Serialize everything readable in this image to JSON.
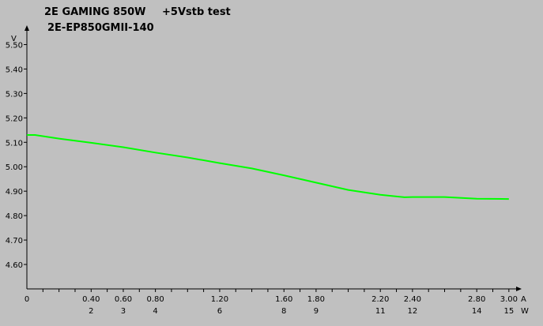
{
  "chart_data": {
    "type": "line",
    "title_lines": [
      "2E GAMING 850W",
      "2E-EP850GMII-140"
    ],
    "subtitle": "+5Vstb test",
    "ylabel": "V",
    "xlabel": "A",
    "x2label": "W",
    "ylim": [
      4.5,
      5.55
    ],
    "xlim": [
      0,
      3.05
    ],
    "y_ticks": [
      "4.60",
      "4.70",
      "4.80",
      "4.90",
      "5.00",
      "5.10",
      "5.20",
      "5.30",
      "5.40",
      "5.50"
    ],
    "y_tick_values": [
      4.6,
      4.7,
      4.8,
      4.9,
      5.0,
      5.1,
      5.2,
      5.3,
      5.4,
      5.5
    ],
    "x_ticks": [
      "0",
      "0.40",
      "0.60",
      "0.80",
      "1.20",
      "1.60",
      "1.80",
      "2.20",
      "2.40",
      "2.80",
      "3.00"
    ],
    "x_tick_values": [
      0,
      0.4,
      0.6,
      0.8,
      1.2,
      1.6,
      1.8,
      2.2,
      2.4,
      2.8,
      3.0
    ],
    "x2_ticks": [
      "2",
      "3",
      "4",
      "6",
      "8",
      "9",
      "11",
      "12",
      "14",
      "15"
    ],
    "x2_tick_values": [
      0.4,
      0.6,
      0.8,
      1.2,
      1.6,
      1.8,
      2.2,
      2.4,
      2.8,
      3.0
    ],
    "grid": false,
    "series": [
      {
        "color": "#00ff00",
        "x": [
          0,
          0.05,
          0.2,
          0.4,
          0.6,
          0.8,
          1.0,
          1.2,
          1.4,
          1.6,
          1.8,
          2.0,
          2.2,
          2.35,
          2.4,
          2.6,
          2.8,
          3.0
        ],
        "y": [
          5.13,
          5.13,
          5.115,
          5.098,
          5.08,
          5.058,
          5.038,
          5.015,
          4.993,
          4.965,
          4.935,
          4.905,
          4.885,
          4.875,
          4.876,
          4.876,
          4.869,
          4.868
        ]
      }
    ]
  }
}
